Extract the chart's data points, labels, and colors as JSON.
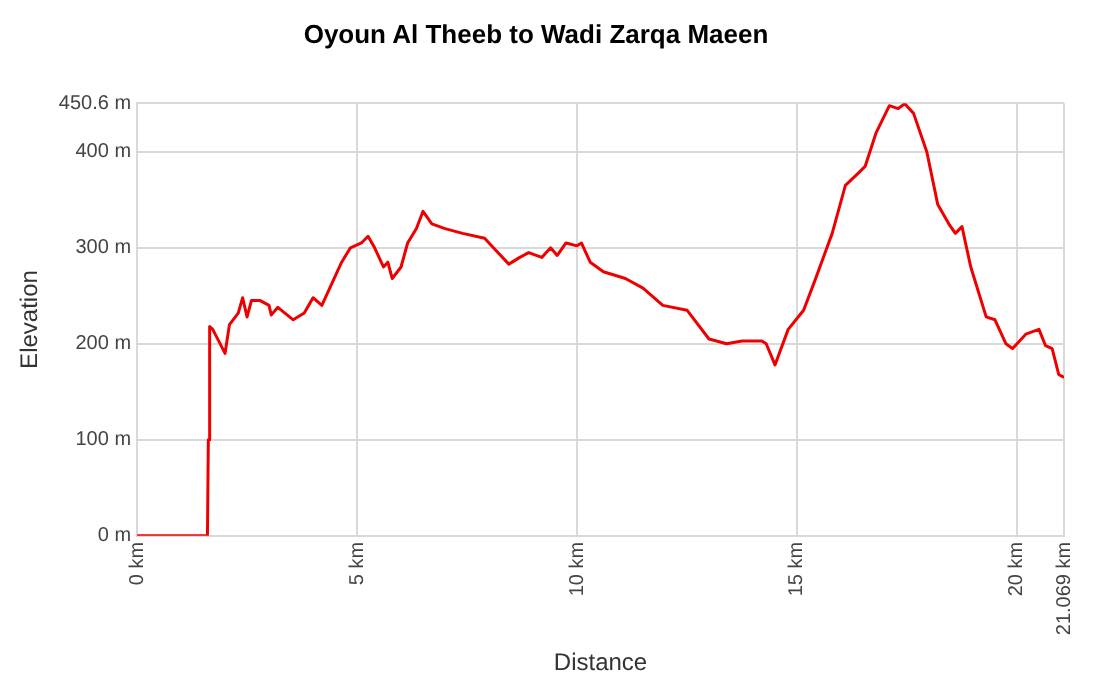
{
  "chart_data": {
    "type": "line",
    "title": "Oyoun Al Theeb to Wadi Zarqa Maeen",
    "xlabel": "Distance",
    "ylabel": "Elevation",
    "xlim": [
      0,
      21.069
    ],
    "ylim": [
      0,
      450.6
    ],
    "xticks": [
      {
        "value": 0,
        "label": "0 km"
      },
      {
        "value": 5,
        "label": "5 km"
      },
      {
        "value": 10,
        "label": "10 km"
      },
      {
        "value": 15,
        "label": "15 km"
      },
      {
        "value": 20,
        "label": "20 km"
      },
      {
        "value": 21.069,
        "label": "21.069 km"
      }
    ],
    "yticks": [
      {
        "value": 0,
        "label": "0 m"
      },
      {
        "value": 100,
        "label": "100 m"
      },
      {
        "value": 200,
        "label": "200 m"
      },
      {
        "value": 300,
        "label": "300 m"
      },
      {
        "value": 400,
        "label": "400 m"
      },
      {
        "value": 450.6,
        "label": "450.6 m"
      }
    ],
    "grid": true,
    "legend": false,
    "marker": "none",
    "line_style": "solid",
    "series": [
      {
        "color": "#ee0000",
        "x": [
          0,
          1.6,
          1.62,
          1.65,
          1.72,
          2.0,
          2.1,
          2.3,
          2.4,
          2.5,
          2.6,
          2.8,
          3.0,
          3.05,
          3.2,
          3.55,
          3.8,
          4.0,
          4.2,
          4.45,
          4.65,
          4.85,
          5.1,
          5.25,
          5.4,
          5.6,
          5.7,
          5.8,
          6.0,
          6.15,
          6.35,
          6.5,
          6.7,
          7.0,
          7.4,
          7.9,
          8.1,
          8.45,
          8.7,
          8.9,
          9.2,
          9.4,
          9.55,
          9.75,
          10.0,
          10.1,
          10.3,
          10.6,
          11.1,
          11.5,
          11.95,
          12.5,
          13.0,
          13.4,
          13.75,
          14.2,
          14.3,
          14.5,
          14.8,
          15.15,
          15.4,
          15.8,
          16.1,
          16.4,
          16.55,
          16.8,
          17.1,
          17.3,
          17.45,
          17.65,
          17.95,
          18.2,
          18.45,
          18.6,
          18.75,
          18.95,
          19.3,
          19.5,
          19.75,
          19.9,
          20.2,
          20.5,
          20.65,
          20.8,
          20.95,
          21.069
        ],
        "values": [
          0,
          0,
          100,
          218,
          215,
          190,
          220,
          232,
          248,
          228,
          245,
          245,
          240,
          230,
          238,
          225,
          232,
          248,
          240,
          265,
          285,
          300,
          305,
          312,
          300,
          280,
          285,
          268,
          280,
          305,
          320,
          338,
          325,
          320,
          315,
          310,
          300,
          283,
          290,
          295,
          290,
          300,
          292,
          305,
          302,
          305,
          285,
          275,
          268,
          258,
          240,
          235,
          205,
          200,
          203,
          203,
          200,
          178,
          215,
          235,
          265,
          315,
          365,
          378,
          385,
          420,
          448,
          445,
          450,
          440,
          400,
          345,
          325,
          315,
          322,
          280,
          228,
          225,
          200,
          195,
          210,
          215,
          198,
          195,
          168,
          165
        ]
      }
    ]
  }
}
